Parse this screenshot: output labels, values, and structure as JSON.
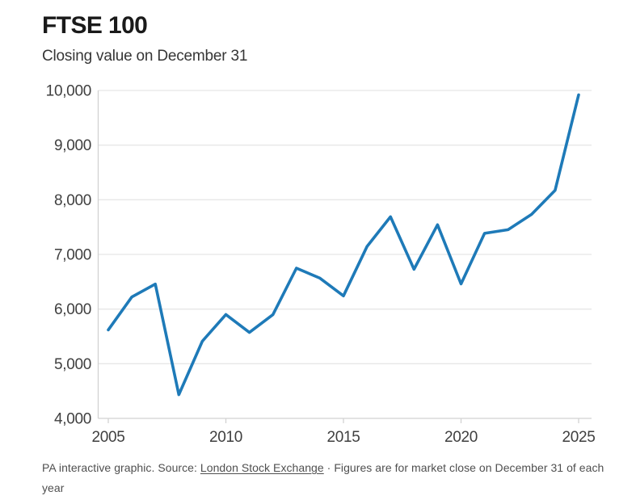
{
  "header": {
    "title": "FTSE 100",
    "subtitle": "Closing value on December 31"
  },
  "chart_data": {
    "type": "line",
    "title": "FTSE 100",
    "subtitle": "Closing value on December 31",
    "series_name": "FTSE 100 closing value on December 31",
    "x": [
      2005,
      2006,
      2007,
      2008,
      2009,
      2010,
      2011,
      2012,
      2013,
      2014,
      2015,
      2016,
      2017,
      2018,
      2019,
      2020,
      2021,
      2022,
      2023,
      2024,
      2025
    ],
    "values": [
      5619,
      6221,
      6457,
      4434,
      5413,
      5900,
      5572,
      5898,
      6749,
      6566,
      6242,
      7143,
      7688,
      6728,
      7542,
      6461,
      7385,
      7452,
      7733,
      8173,
      9920
    ],
    "xlim": [
      2005,
      2025
    ],
    "ylim": [
      4000,
      10000
    ],
    "x_ticks": [
      {
        "value": 2005,
        "label": "2005"
      },
      {
        "value": 2010,
        "label": "2010"
      },
      {
        "value": 2015,
        "label": "2015"
      },
      {
        "value": 2020,
        "label": "2020"
      },
      {
        "value": 2025,
        "label": "2025"
      }
    ],
    "y_ticks": [
      {
        "value": 4000,
        "label": "4,000"
      },
      {
        "value": 5000,
        "label": "5,000"
      },
      {
        "value": 6000,
        "label": "6,000"
      },
      {
        "value": 7000,
        "label": "7,000"
      },
      {
        "value": 8000,
        "label": "8,000"
      },
      {
        "value": 9000,
        "label": "9,000"
      },
      {
        "value": 10000,
        "label": "10,000"
      }
    ],
    "grid": true,
    "legend": false,
    "line_color": "#1e7ab8",
    "grid_color": "#e7e7e7",
    "axis_color": "#d2d2d2",
    "tick_label_color": "#3f3f3f"
  },
  "footer": {
    "prefix": "PA interactive graphic. Source: ",
    "source_link": "London Stock Exchange",
    "middle": " · ",
    "suffix": "Figures are for market close on December 31 of each year"
  }
}
